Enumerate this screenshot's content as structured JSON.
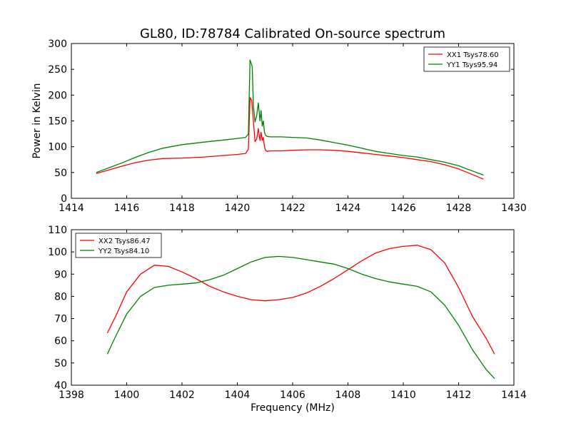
{
  "figure": {
    "title": "GL80, ID:78784 Calibrated On-source spectrum",
    "background": "#ffffff"
  },
  "chart_data": [
    {
      "type": "line",
      "title": "GL80, ID:78784 Calibrated On-source spectrum",
      "xlabel": "",
      "ylabel": "Power in Kelvin",
      "xlim": [
        1414,
        1430
      ],
      "ylim": [
        0,
        300
      ],
      "xticks": [
        1414,
        1416,
        1418,
        1420,
        1422,
        1424,
        1426,
        1428,
        1430
      ],
      "yticks": [
        0,
        50,
        100,
        150,
        200,
        250,
        300
      ],
      "grid": false,
      "legend_position": "top-right",
      "series": [
        {
          "name": "XX1 Tsys78.60",
          "color": "#ff0000",
          "x": [
            1414.9,
            1415.3,
            1415.8,
            1416.3,
            1416.8,
            1417.3,
            1418.0,
            1418.8,
            1419.5,
            1420.0,
            1420.3,
            1420.4,
            1420.46,
            1420.52,
            1420.58,
            1420.64,
            1420.7,
            1420.76,
            1420.82,
            1420.86,
            1420.9,
            1420.94,
            1420.98,
            1421.02,
            1421.08,
            1421.2,
            1421.6,
            1422.0,
            1422.5,
            1423.0,
            1423.5,
            1424.0,
            1424.5,
            1425.0,
            1425.5,
            1426.0,
            1426.5,
            1427.0,
            1427.5,
            1428.0,
            1428.5,
            1428.9
          ],
          "y": [
            48,
            54,
            62,
            69,
            74,
            77,
            78,
            80,
            83,
            85,
            87,
            95,
            195,
            190,
            150,
            110,
            115,
            135,
            112,
            128,
            112,
            118,
            100,
            93,
            91,
            92,
            92,
            93,
            94,
            94,
            93,
            91,
            88,
            85,
            82,
            79,
            75,
            71,
            65,
            57,
            46,
            37
          ]
        },
        {
          "name": "YY1 Tsys95.94",
          "color": "#008000",
          "x": [
            1414.9,
            1415.3,
            1415.8,
            1416.3,
            1416.8,
            1417.3,
            1418.0,
            1418.8,
            1419.5,
            1420.0,
            1420.3,
            1420.4,
            1420.46,
            1420.5,
            1420.54,
            1420.58,
            1420.64,
            1420.7,
            1420.76,
            1420.82,
            1420.86,
            1420.9,
            1420.94,
            1420.98,
            1421.02,
            1421.08,
            1421.2,
            1421.6,
            1422.0,
            1422.5,
            1423.0,
            1423.5,
            1424.0,
            1424.5,
            1425.0,
            1425.5,
            1426.0,
            1426.5,
            1427.0,
            1427.5,
            1428.0,
            1428.5,
            1428.9
          ],
          "y": [
            50,
            58,
            68,
            79,
            89,
            97,
            104,
            109,
            113,
            116,
            118,
            125,
            268,
            262,
            255,
            180,
            148,
            160,
            185,
            150,
            170,
            140,
            150,
            128,
            122,
            120,
            119,
            119,
            118,
            117,
            113,
            108,
            103,
            97,
            91,
            87,
            83,
            80,
            75,
            70,
            63,
            53,
            45
          ]
        }
      ]
    },
    {
      "type": "line",
      "title": "",
      "xlabel": "Frequency (MHz)",
      "ylabel": "",
      "xlim": [
        1398,
        1414
      ],
      "ylim": [
        40,
        110
      ],
      "xticks": [
        1398,
        1400,
        1402,
        1404,
        1406,
        1408,
        1410,
        1412,
        1414
      ],
      "yticks": [
        40,
        50,
        60,
        70,
        80,
        90,
        100,
        110
      ],
      "grid": false,
      "legend_position": "top-left",
      "series": [
        {
          "name": "XX2 Tsys86.47",
          "color": "#ff0000",
          "x": [
            1399.3,
            1399.6,
            1400.0,
            1400.5,
            1401.0,
            1401.5,
            1402.0,
            1402.5,
            1403.0,
            1403.5,
            1404.0,
            1404.5,
            1405.0,
            1405.5,
            1406.0,
            1406.5,
            1407.0,
            1407.5,
            1408.0,
            1408.5,
            1409.0,
            1409.5,
            1410.0,
            1410.5,
            1411.0,
            1411.5,
            1412.0,
            1412.5,
            1413.0,
            1413.3
          ],
          "y": [
            63.5,
            71,
            82,
            90,
            94,
            93.5,
            91,
            88,
            84.5,
            82,
            80,
            78.5,
            78,
            78.5,
            79.5,
            81.5,
            84.5,
            88,
            92,
            96,
            99.5,
            101.5,
            102.5,
            103,
            101,
            95,
            84,
            71,
            61,
            54
          ]
        },
        {
          "name": "YY2 Tsys84.10",
          "color": "#008000",
          "x": [
            1399.3,
            1399.6,
            1400.0,
            1400.5,
            1401.0,
            1401.5,
            1402.0,
            1402.5,
            1403.0,
            1403.5,
            1404.0,
            1404.5,
            1405.0,
            1405.5,
            1406.0,
            1406.5,
            1407.0,
            1407.5,
            1408.0,
            1408.5,
            1409.0,
            1409.5,
            1410.0,
            1410.5,
            1411.0,
            1411.5,
            1412.0,
            1412.5,
            1413.0,
            1413.3
          ],
          "y": [
            54,
            62,
            72,
            80,
            84,
            85,
            85.5,
            86,
            87.5,
            89.5,
            92.5,
            95.5,
            97.5,
            98,
            97.5,
            96.5,
            95.5,
            94.5,
            92.5,
            90,
            88,
            86.5,
            85.5,
            84.5,
            82,
            76,
            67,
            56,
            47,
            43
          ]
        }
      ]
    }
  ]
}
